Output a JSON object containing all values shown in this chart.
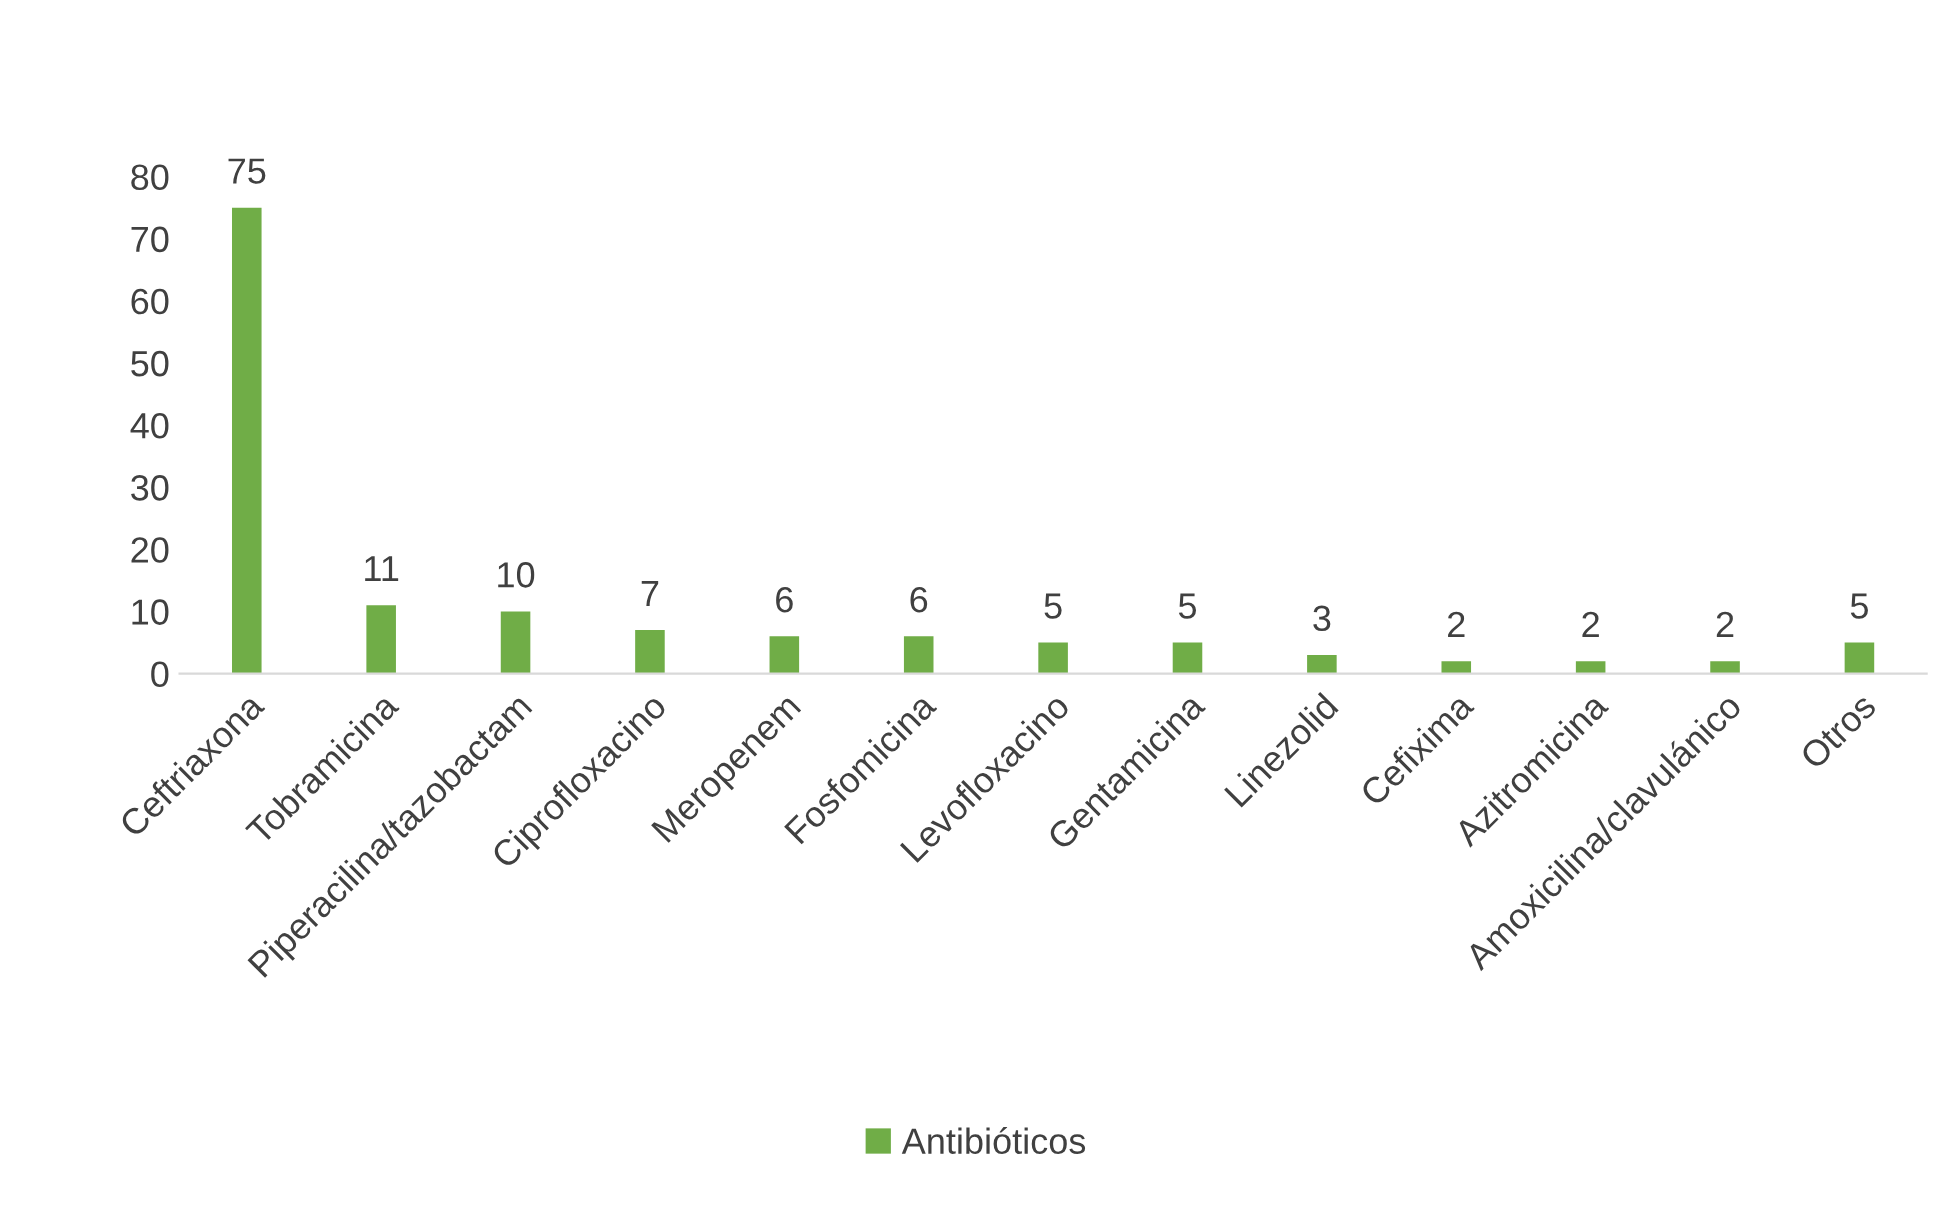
{
  "chart_data": {
    "type": "bar",
    "categories": [
      "Ceftriaxona",
      "Tobramicina",
      "Piperacilina/tazobactam",
      "Ciprofloxacino",
      "Meropenem",
      "Fosfomicina",
      "Levofloxacino",
      "Gentamicina",
      "Linezolid",
      "Cefixima",
      "Azitromicina",
      "Amoxicilina/clavulánico",
      "Otros"
    ],
    "series": [
      {
        "name": "Antibióticos",
        "color": "#70ad47",
        "values": [
          75,
          11,
          10,
          7,
          6,
          6,
          5,
          5,
          3,
          2,
          2,
          2,
          5
        ]
      }
    ],
    "ylim": [
      0,
      80
    ],
    "yticks": [
      0,
      10,
      20,
      30,
      40,
      50,
      60,
      70,
      80
    ],
    "grid": false,
    "data_labels": true,
    "legend": "bottom"
  }
}
